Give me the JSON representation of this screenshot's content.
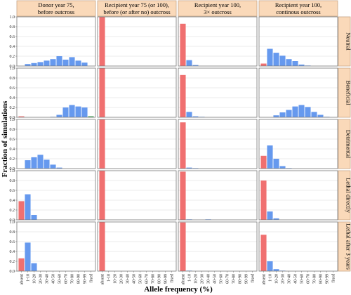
{
  "chart_data": {
    "type": "bar",
    "title": "",
    "xlabel": "Allele frequency (%)",
    "ylabel": "Fraction of simulations",
    "ylim": [
      0,
      1.0
    ],
    "yticks": [
      "0.0",
      "0.2",
      "0.4",
      "0.6",
      "0.8",
      "1.0"
    ],
    "categories": [
      "absent",
      "1-10",
      "10-20",
      "20-30",
      "30-40",
      "40-50",
      "50-60",
      "60-70",
      "70-80",
      "80-90",
      "90-99",
      "fixed"
    ],
    "columns": [
      "Donor year 75, before outcross",
      "Recipient year 75 (or 100), before (or after no) outcross",
      "Recipient year 100, 3× outcross",
      "Recipient year 100, continous outcross"
    ],
    "rows": [
      "Neutral",
      "Beneficial",
      "Detrimental",
      "Lethal directly",
      "Lethal after 3 years"
    ],
    "colors": {
      "absent": "#f07070",
      "middle": "#6699ee",
      "fixed": "#2e9a45",
      "strip": "#fad9b9",
      "strip_border": "#c8a584",
      "frame": "#777777",
      "grid": "#d8d8d8"
    },
    "values": [
      [
        [
          0,
          0.04,
          0.06,
          0.08,
          0.11,
          0.14,
          0.2,
          0.13,
          0.18,
          0.11,
          0.07,
          0
        ],
        [
          1.0,
          0,
          0,
          0,
          0,
          0,
          0,
          0,
          0,
          0,
          0,
          0
        ],
        [
          0.86,
          0.12,
          0.02,
          0,
          0,
          0,
          0,
          0,
          0,
          0,
          0,
          0
        ],
        [
          0.05,
          0.35,
          0.27,
          0.21,
          0.14,
          0.1,
          0.03,
          0.01,
          0,
          0,
          0,
          0
        ]
      ],
      [
        [
          0.02,
          0,
          0,
          0,
          0,
          0.01,
          0.05,
          0.2,
          0.25,
          0.22,
          0.2,
          0.02
        ],
        [
          1.0,
          0,
          0,
          0,
          0,
          0,
          0,
          0,
          0,
          0,
          0,
          0
        ],
        [
          0.86,
          0.11,
          0.02,
          0.01,
          0,
          0,
          0,
          0,
          0,
          0,
          0,
          0
        ],
        [
          0,
          0,
          0.04,
          0.1,
          0.15,
          0.22,
          0.25,
          0.21,
          0.11,
          0.05,
          0.01,
          0
        ]
      ],
      [
        [
          0,
          0.17,
          0.23,
          0.28,
          0.18,
          0.08,
          0.02,
          0,
          0,
          0,
          0,
          0
        ],
        [
          1.0,
          0,
          0,
          0,
          0,
          0,
          0,
          0,
          0,
          0,
          0,
          0
        ],
        [
          0.94,
          0.02,
          0.01,
          0,
          0,
          0,
          0,
          0,
          0,
          0,
          0,
          0
        ],
        [
          0.26,
          0.47,
          0.2,
          0.05,
          0.01,
          0,
          0,
          0,
          0,
          0,
          0,
          0
        ]
      ],
      [
        [
          0.38,
          0.52,
          0.1,
          0,
          0,
          0,
          0,
          0,
          0,
          0,
          0,
          0
        ],
        [
          1.0,
          0,
          0,
          0,
          0,
          0,
          0,
          0,
          0,
          0,
          0,
          0
        ],
        [
          0.98,
          0.01,
          0,
          0,
          0.01,
          0,
          0,
          0,
          0,
          0,
          0,
          0
        ],
        [
          0.8,
          0.17,
          0.03,
          0,
          0,
          0,
          0,
          0,
          0,
          0,
          0,
          0
        ]
      ],
      [
        [
          0.26,
          0.58,
          0.16,
          0,
          0,
          0,
          0,
          0,
          0,
          0,
          0,
          0
        ],
        [
          1.0,
          0,
          0,
          0,
          0,
          0,
          0,
          0,
          0,
          0,
          0,
          0
        ],
        [
          0.99,
          0.01,
          0,
          0,
          0,
          0,
          0,
          0,
          0,
          0,
          0,
          0
        ],
        [
          0.74,
          0.2,
          0.04,
          0.01,
          0,
          0,
          0,
          0,
          0,
          0,
          0,
          0
        ]
      ]
    ]
  }
}
